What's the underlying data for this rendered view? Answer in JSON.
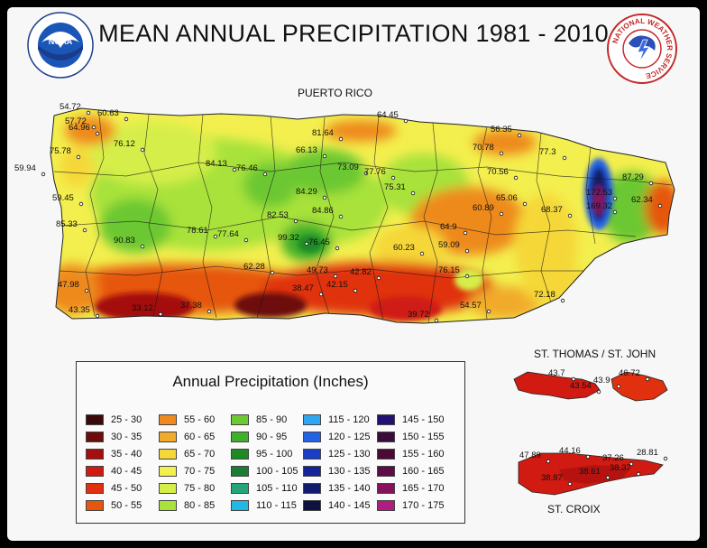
{
  "title": "MEAN ANNUAL PRECIPITATION 1981 - 2010",
  "regions": {
    "puerto_rico": "PUERTO RICO",
    "st_thomas_st_john": "ST. THOMAS / ST. JOHN",
    "st_croix": "ST. CROIX"
  },
  "logos": {
    "noaa_text": "NOAA",
    "noaa_ring": "NATIONAL OCEANIC AND ATMOSPHERIC ADMINISTRATION",
    "noaa_ring_bottom": "U.S. DEPARTMENT OF COMMERCE",
    "nws_ring": "NATIONAL WEATHER SERVICE"
  },
  "legend": {
    "title": "Annual Precipitation (Inches)",
    "items": [
      {
        "label": "25 - 30",
        "color": "#3a0a0a"
      },
      {
        "label": "30 - 35",
        "color": "#6e0c0c"
      },
      {
        "label": "35 - 40",
        "color": "#a50f0f"
      },
      {
        "label": "40 - 45",
        "color": "#d01a12"
      },
      {
        "label": "45 - 50",
        "color": "#e0300e"
      },
      {
        "label": "50 - 55",
        "color": "#e6560c"
      },
      {
        "label": "55 - 60",
        "color": "#ee8a1e"
      },
      {
        "label": "60 - 65",
        "color": "#f1aa2c"
      },
      {
        "label": "65 - 70",
        "color": "#f5d737"
      },
      {
        "label": "70 - 75",
        "color": "#f3ef4e"
      },
      {
        "label": "75 - 80",
        "color": "#d6ee48"
      },
      {
        "label": "80 - 85",
        "color": "#a8e23a"
      },
      {
        "label": "85 - 90",
        "color": "#6cc833"
      },
      {
        "label": "90 - 95",
        "color": "#3faf2c"
      },
      {
        "label": "95 - 100",
        "color": "#1f8a25"
      },
      {
        "label": "100 - 105",
        "color": "#1b7a33"
      },
      {
        "label": "105 - 110",
        "color": "#23a47a"
      },
      {
        "label": "110 - 115",
        "color": "#22b8e4"
      },
      {
        "label": "115 - 120",
        "color": "#2fa6f0"
      },
      {
        "label": "120 - 125",
        "color": "#2462e6"
      },
      {
        "label": "125 - 130",
        "color": "#1a3fc4"
      },
      {
        "label": "130 - 135",
        "color": "#14239a"
      },
      {
        "label": "135 - 140",
        "color": "#121b6e"
      },
      {
        "label": "140 - 145",
        "color": "#0e1240"
      },
      {
        "label": "145 - 150",
        "color": "#241072"
      },
      {
        "label": "150 - 155",
        "color": "#3a0c3c"
      },
      {
        "label": "155 - 160",
        "color": "#4a0a34"
      },
      {
        "label": "160 - 165",
        "color": "#5e0c48"
      },
      {
        "label": "165 - 170",
        "color": "#86125e"
      },
      {
        "label": "170 - 175",
        "color": "#b01c80"
      }
    ]
  },
  "stations": {
    "puerto_rico": [
      "54.72",
      "57.72",
      "60.63",
      "64.96",
      "75.78",
      "59.94",
      "59.45",
      "85.33",
      "76.12",
      "84.13",
      "76.46",
      "66.13",
      "81.64",
      "64.45",
      "56.35",
      "70.78",
      "77.3",
      "73.09",
      "77.76",
      "75.31",
      "84.29",
      "84.86",
      "82.53",
      "78.61",
      "77.64",
      "90.83",
      "99.32",
      "76.45",
      "70.56",
      "65.06",
      "60.89",
      "68.37",
      "87.29",
      "172.53",
      "169.32",
      "62.34",
      "64.9",
      "60.23",
      "59.09",
      "76.15",
      "62.28",
      "49.73",
      "42.82",
      "42.15",
      "38.47",
      "47.98",
      "43.35",
      "33.12",
      "37.38",
      "39.72",
      "54.57",
      "72.18"
    ],
    "st_thomas_st_john": [
      "43.7",
      "43.54",
      "43.9",
      "46.72"
    ],
    "st_croix": [
      "47.89",
      "44.16",
      "37.26",
      "28.81",
      "38.87",
      "38.61",
      "38.37"
    ]
  }
}
